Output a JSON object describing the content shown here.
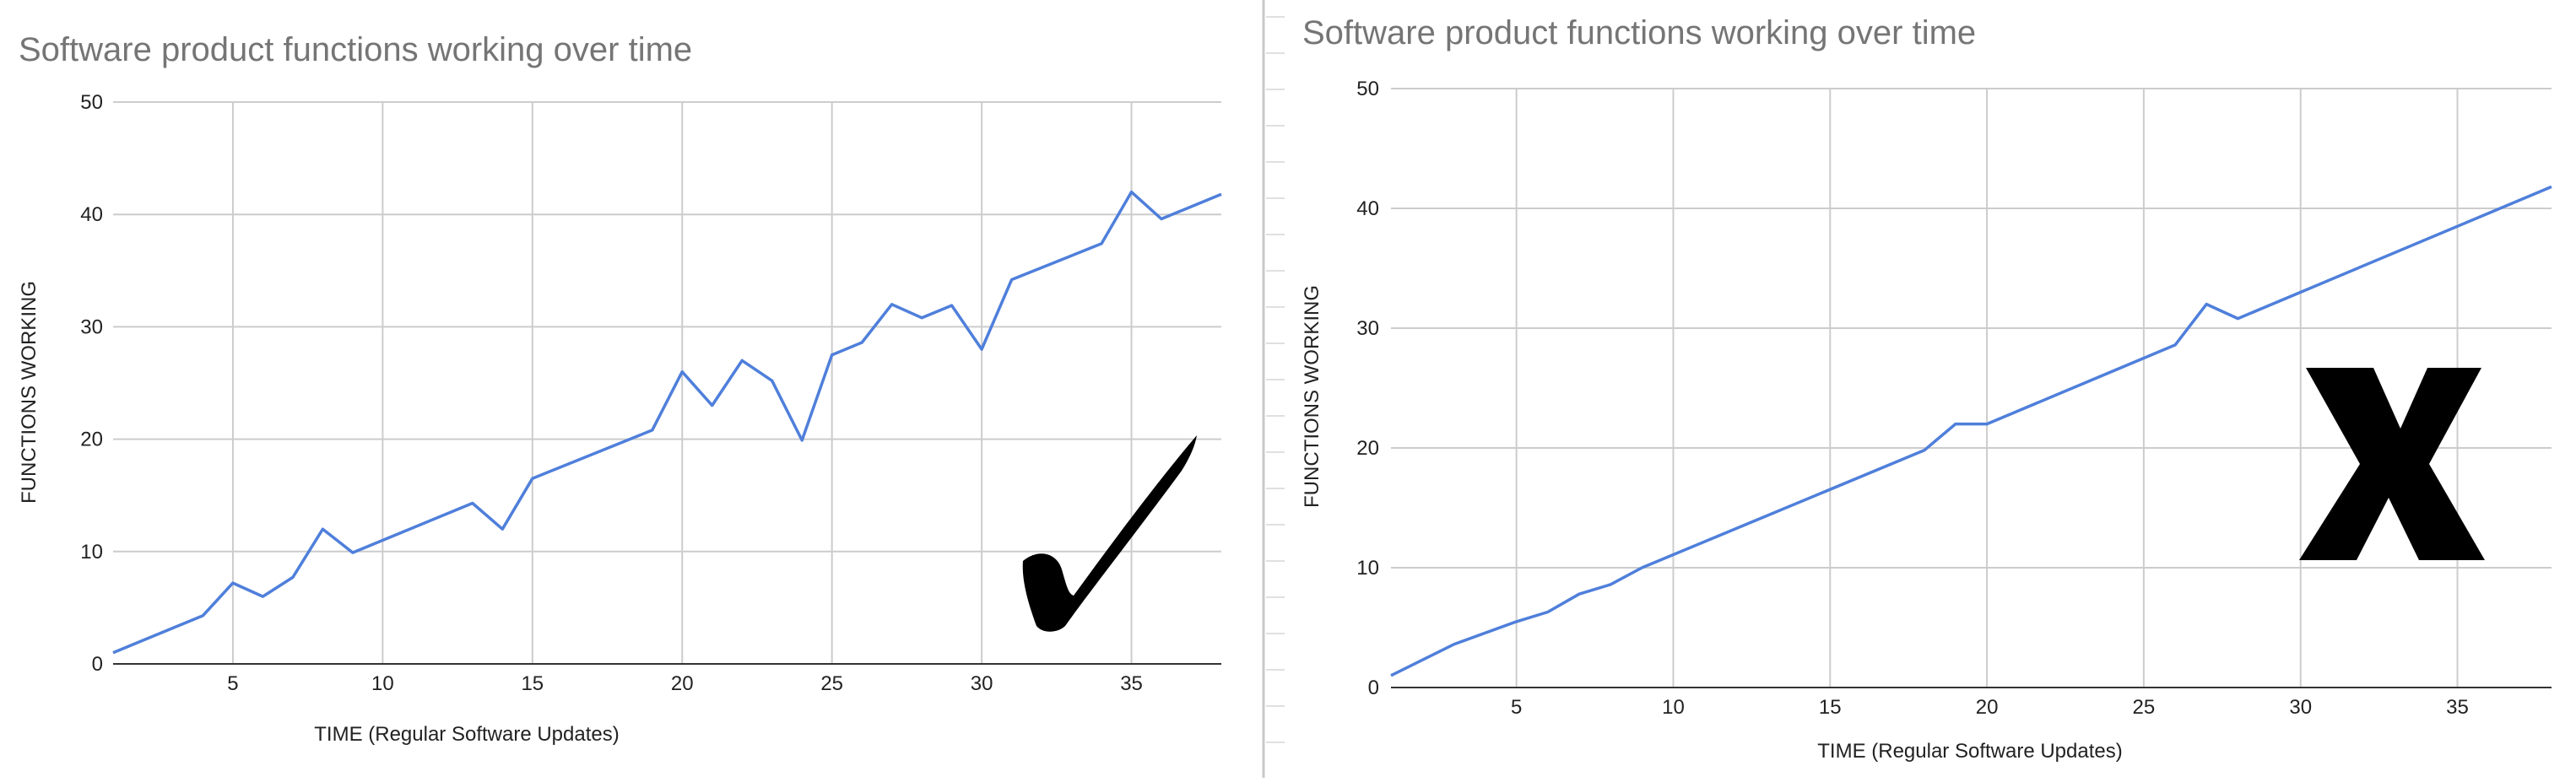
{
  "chart_data": [
    {
      "type": "line",
      "title": "Software product functions working over time",
      "xlabel": "TIME (Regular Software Updates)",
      "ylabel": "FUNCTIONS WORKING",
      "xlim": [
        1,
        38
      ],
      "ylim": [
        0,
        50
      ],
      "xticks": [
        5,
        10,
        15,
        20,
        25,
        30,
        35
      ],
      "yticks": [
        0,
        10,
        20,
        30,
        40,
        50
      ],
      "grid": true,
      "line_color": "#4f7fdb",
      "marker_symbol": "checkmark",
      "x": [
        1,
        4,
        5,
        6,
        7,
        8,
        9,
        13,
        14,
        15,
        19,
        20,
        21,
        22,
        23,
        24,
        25,
        26,
        27,
        28,
        29,
        30,
        31,
        34,
        35,
        36,
        38
      ],
      "series": [
        {
          "values": [
            1,
            4.3,
            7.2,
            6,
            7.7,
            12,
            9.9,
            14.3,
            12,
            16.5,
            20.8,
            26,
            23,
            27,
            25.2,
            19.9,
            27.5,
            28.6,
            32,
            30.8,
            31.9,
            28,
            34.2,
            37.4,
            42,
            39.6,
            41.8
          ]
        }
      ]
    },
    {
      "type": "line",
      "title": "Software product functions working over time",
      "xlabel": "TIME (Regular Software Updates)",
      "ylabel": "FUNCTIONS WORKING",
      "xlim": [
        1,
        38
      ],
      "ylim": [
        0,
        50
      ],
      "xticks": [
        5,
        10,
        15,
        20,
        25,
        30,
        35
      ],
      "yticks": [
        0,
        10,
        20,
        30,
        40,
        50
      ],
      "grid": true,
      "line_color": "#4f7fdb",
      "marker_symbol": "X",
      "x": [
        1,
        3,
        5,
        6,
        7,
        8,
        9,
        18,
        19,
        20,
        26,
        27,
        28,
        38
      ],
      "series": [
        {
          "values": [
            1,
            3.6,
            5.5,
            6.3,
            7.8,
            8.6,
            10,
            19.8,
            22,
            22,
            28.6,
            32,
            30.8,
            41.8
          ]
        }
      ]
    }
  ]
}
